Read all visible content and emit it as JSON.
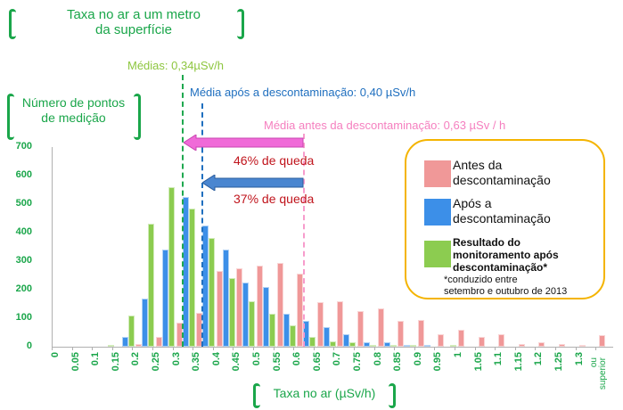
{
  "header": {
    "title_line1": "Taxa no ar a um metro",
    "title_line2": "da superfície"
  },
  "y_axis_title": {
    "line1": "Número de pontos",
    "line2": "de medição"
  },
  "x_axis_title": "Taxa no ar (µSv/h)",
  "means": {
    "monitoring": {
      "label": "Médias: 0,34µSv/h",
      "color": "#8dc63f"
    },
    "after": {
      "label": "Média após a descontaminação: 0,40 µSv/h",
      "color": "#1f6fbf"
    },
    "before": {
      "label": "Média antes da descontaminação: 0,63 µSv / h",
      "color": "#f57fbf"
    }
  },
  "drops": {
    "pink": "46% de queda",
    "blue": "37% de queda"
  },
  "legend": {
    "items": [
      {
        "label_line1": "Antes da",
        "label_line2": "descontaminação",
        "color": "#f09898"
      },
      {
        "label_line1": "Após a",
        "label_line2": "descontaminação",
        "color": "#3c8fe8"
      },
      {
        "label_line1": "Resultado do",
        "label_line2": "monitoramento após",
        "label_line3": "descontaminação*",
        "color": "#8ccc50"
      }
    ],
    "footnote_line1": "*conduzido entre",
    "footnote_line2": "setembro e outubro de 2013",
    "border_color": "#f4b400"
  },
  "chart_data": {
    "type": "bar",
    "title": "Taxa no ar a um metro da superfície",
    "xlabel": "Taxa no ar (µSv/h)",
    "ylabel": "Número de pontos de medição",
    "ylim": [
      0,
      700
    ],
    "yticks": [
      0,
      100,
      200,
      300,
      400,
      500,
      600,
      700
    ],
    "grid": false,
    "legend_position": "right",
    "categories": [
      "0",
      "0.05",
      "0.1",
      "0.15",
      "0.2",
      "0.25",
      "0.3",
      "0.35",
      "0.4",
      "0.45",
      "0.5",
      "0.55",
      "0.6",
      "0.65",
      "0.7",
      "0.75",
      "0.8",
      "0.85",
      "0.9",
      "0.95",
      "1",
      "1.05",
      "1.1",
      "1.15",
      "1.2",
      "1.25",
      "1.3",
      "ou superior"
    ],
    "series": [
      {
        "name": "Antes da descontaminação",
        "color": "#f09898",
        "values": [
          0,
          0,
          0,
          0,
          10,
          35,
          85,
          120,
          265,
          275,
          285,
          295,
          255,
          155,
          160,
          125,
          135,
          90,
          95,
          45,
          60,
          35,
          45,
          10,
          15,
          10,
          5,
          40
        ]
      },
      {
        "name": "Após a descontaminação",
        "color": "#3c8fe8",
        "values": [
          0,
          0,
          0,
          35,
          170,
          340,
          525,
          425,
          340,
          225,
          210,
          115,
          90,
          70,
          45,
          15,
          15,
          5,
          5,
          0,
          0,
          0,
          0,
          0,
          0,
          0,
          0,
          0
        ]
      },
      {
        "name": "Resultado do monitoramento após descontaminação*",
        "color": "#8ccc50",
        "values": [
          0,
          0,
          5,
          110,
          430,
          560,
          485,
          380,
          240,
          160,
          115,
          75,
          35,
          20,
          15,
          5,
          5,
          5,
          0,
          5,
          0,
          0,
          0,
          0,
          0,
          0,
          0,
          0
        ]
      }
    ],
    "annotations": [
      {
        "text": "Médias: 0,34µSv/h",
        "x": 0.34
      },
      {
        "text": "Média após a descontaminação: 0,40 µSv/h",
        "x": 0.4
      },
      {
        "text": "Média antes da descontaminação: 0,63 µSv / h",
        "x": 0.63
      },
      {
        "text": "46% de queda"
      },
      {
        "text": "37% de queda"
      }
    ]
  }
}
